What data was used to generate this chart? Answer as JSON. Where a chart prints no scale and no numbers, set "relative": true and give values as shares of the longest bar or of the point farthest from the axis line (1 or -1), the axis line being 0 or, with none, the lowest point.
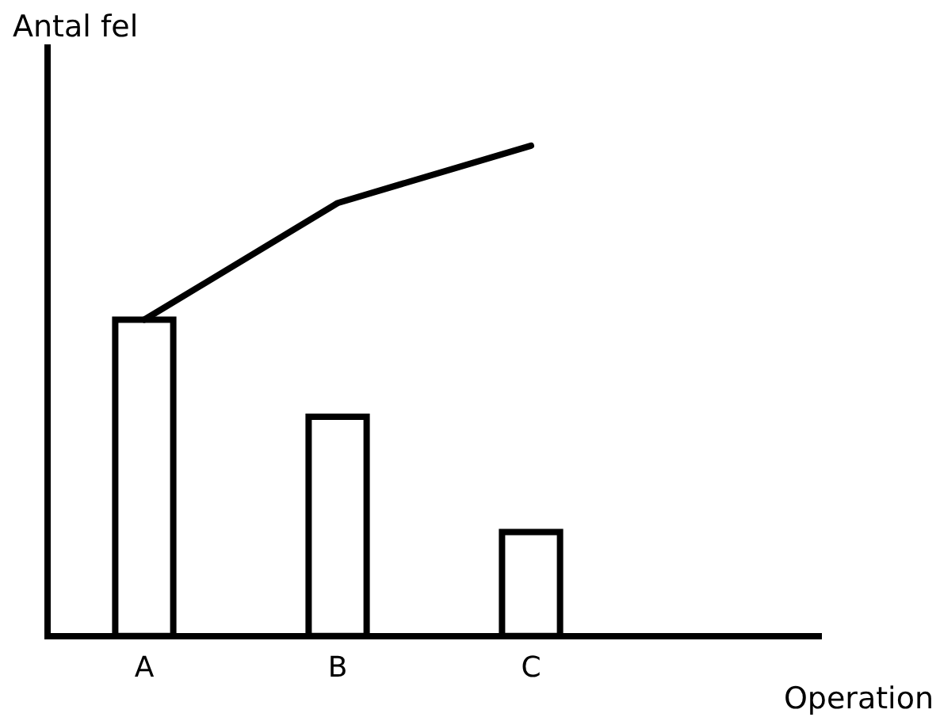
{
  "chart_data": {
    "type": "bar",
    "relative": true,
    "xlabel": "Operation",
    "ylabel": "Antal fel",
    "categories": [
      "A",
      "B",
      "C",
      null
    ],
    "series": [
      {
        "type": "bar",
        "color": "#000000",
        "values": [
          0.645,
          0.447,
          0.212,
          null
        ]
      },
      {
        "type": "line",
        "color": "#000000",
        "values": [
          0.645,
          0.883,
          1,
          null
        ]
      }
    ],
    "grid": false,
    "legend": false,
    "tick_labels": "x",
    "marker": "none",
    "line_style": "solid"
  }
}
